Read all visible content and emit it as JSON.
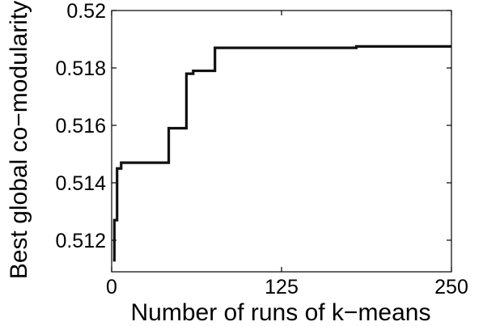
{
  "chart_data": {
    "type": "line",
    "title": "",
    "xlabel": "Number of runs of k−means",
    "ylabel": "Best global co−modularity",
    "xlim": [
      0,
      250
    ],
    "ylim": [
      0.5109,
      0.52
    ],
    "xticks": [
      0,
      125,
      250
    ],
    "xtick_labels": [
      "0",
      "125",
      "250"
    ],
    "yticks": [
      0.512,
      0.514,
      0.516,
      0.518,
      0.52
    ],
    "ytick_labels": [
      "0.512",
      "0.514",
      "0.516",
      "0.518",
      "0.52"
    ],
    "grid": false,
    "legend": "none",
    "step": true,
    "series": [
      {
        "line_color": "#111111",
        "x": [
          1,
          2,
          4,
          7,
          42,
          55,
          60,
          76,
          180,
          250
        ],
        "y": [
          0.5113,
          0.5127,
          0.5145,
          0.5147,
          0.5159,
          0.5178,
          0.5179,
          0.5187,
          0.51875,
          0.51875
        ]
      }
    ]
  }
}
